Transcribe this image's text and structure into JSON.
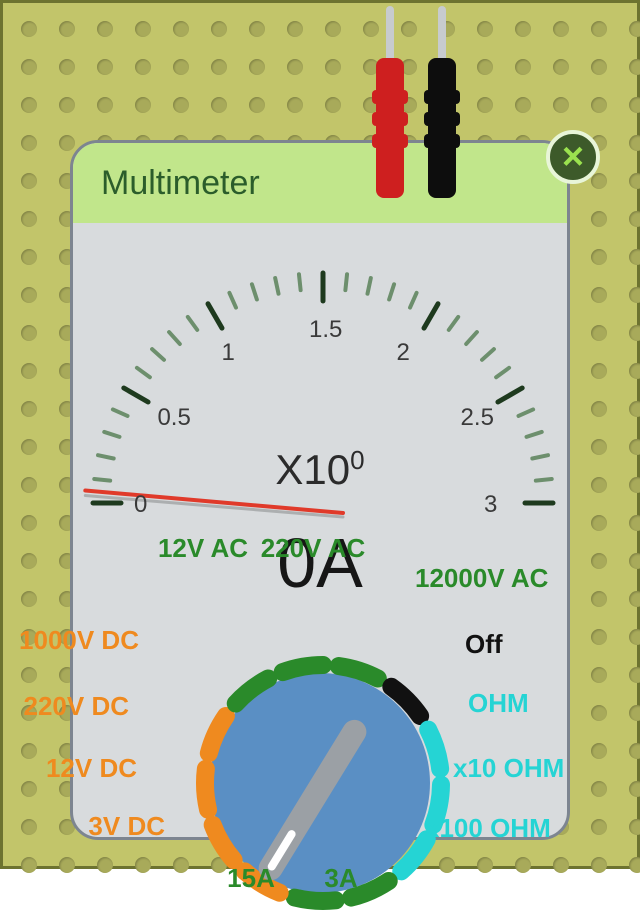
{
  "board": {
    "background_color": "#c2c56a",
    "hole_color": "#a8aa5a",
    "hole_spacing": 38,
    "hole_radius": 8
  },
  "meter": {
    "body_color": "#d8dbdd",
    "title_band_color": "#c1e68b",
    "title": "Multimeter",
    "title_color": "#2b5d2b",
    "scale": {
      "min": 0,
      "max": 3,
      "major_ticks": [
        0,
        0.5,
        1,
        1.5,
        2,
        2.5,
        3
      ],
      "tick_color": "#1e3a1e",
      "secondary_tick_color": "#6d8f6d"
    },
    "multiplier_label_prefix": "X10",
    "multiplier_exponent": "0",
    "reading": "0A",
    "needle_value": 0.05,
    "needle_color": "#e03a2a"
  },
  "dial": {
    "knob_color": "#5a8fc4",
    "pointer_color": "#9ba0a5",
    "pointer_tip_color": "#ffffff",
    "selected_index": 8,
    "positions": [
      {
        "label": "220V AC",
        "color": "#2a8a2a",
        "label_color": "#2a8a2a"
      },
      {
        "label": "12000V AC",
        "color": "#2a8a2a",
        "label_color": "#2a8a2a"
      },
      {
        "label": "Off",
        "color": "#111111",
        "label_color": "#111111"
      },
      {
        "label": "OHM",
        "color": "#25d4d4",
        "label_color": "#25d4d4"
      },
      {
        "label": "x10 OHM",
        "color": "#25d4d4",
        "label_color": "#25d4d4"
      },
      {
        "label": "x100 OHM",
        "color": "#25d4d4",
        "label_color": "#25d4d4"
      },
      {
        "label": "3A",
        "color": "#2a8a2a",
        "label_color": "#2a8a2a"
      },
      {
        "label": "15A",
        "color": "#2a8a2a",
        "label_color": "#2a8a2a"
      },
      {
        "label": "3V DC",
        "color": "#ef8a1f",
        "label_color": "#ef8a1f"
      },
      {
        "label": "12V DC",
        "color": "#ef8a1f",
        "label_color": "#ef8a1f"
      },
      {
        "label": "220V DC",
        "color": "#ef8a1f",
        "label_color": "#ef8a1f"
      },
      {
        "label": "1000V DC",
        "color": "#ef8a1f",
        "label_color": "#ef8a1f"
      },
      {
        "label": "12V AC",
        "color": "#2a8a2a",
        "label_color": "#2a8a2a"
      }
    ]
  },
  "probes": {
    "left_color": "#ce1f1f",
    "right_color": "#0d0d0d",
    "tip_color": "#c7cbce"
  },
  "close_button": {
    "bg": "#3d5a2a",
    "ring": "#e8f5d8",
    "glyph": "×",
    "glyph_color": "#9be24f"
  }
}
